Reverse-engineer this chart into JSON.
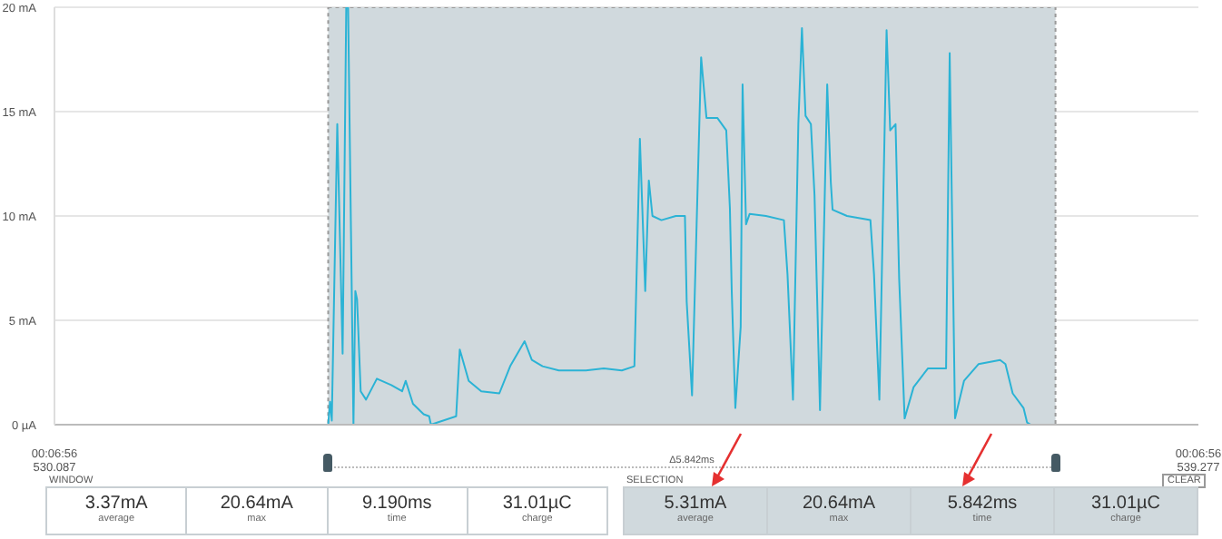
{
  "chart_data": {
    "type": "line",
    "x": [
      530.087,
      532.286,
      532.301,
      532.315,
      532.359,
      532.402,
      532.431,
      532.446,
      532.489,
      532.504,
      532.518,
      532.547,
      532.59,
      532.677,
      532.793,
      532.88,
      532.909,
      532.967,
      533.053,
      533.097,
      533.111,
      533.314,
      533.343,
      533.415,
      533.516,
      533.661,
      533.748,
      533.864,
      533.922,
      534.008,
      534.139,
      534.356,
      534.5,
      534.645,
      534.746,
      534.79,
      534.833,
      534.862,
      534.891,
      534.963,
      535.079,
      535.152,
      535.166,
      535.209,
      535.282,
      535.325,
      535.412,
      535.484,
      535.513,
      535.528,
      535.557,
      535.6,
      535.615,
      535.643,
      535.672,
      535.803,
      535.947,
      535.976,
      536.02,
      536.063,
      536.092,
      536.121,
      536.164,
      536.193,
      536.237,
      536.295,
      536.324,
      536.338,
      536.454,
      536.642,
      536.671,
      536.714,
      536.772,
      536.801,
      536.844,
      536.873,
      536.917,
      536.989,
      537.105,
      537.25,
      537.279,
      537.322,
      537.394,
      537.51,
      537.684,
      537.727,
      537.785,
      537.872,
      537.901,
      537.93,
      539.277
    ],
    "series": [
      {
        "color": "#2bb3d5",
        "values": [
          0,
          0,
          1.1,
          0.2,
          14.4,
          3.4,
          20,
          20,
          0,
          6.4,
          6,
          1.6,
          1.2,
          2.2,
          1.9,
          1.6,
          2.1,
          1,
          0.5,
          0.4,
          0,
          0.4,
          3.6,
          2.1,
          1.6,
          1.5,
          2.8,
          4,
          3.1,
          2.8,
          2.6,
          2.6,
          2.7,
          2.6,
          2.8,
          13.7,
          6.4,
          11.7,
          10,
          9.8,
          10,
          10,
          5.9,
          1.4,
          17.6,
          14.7,
          14.7,
          14.1,
          10.4,
          6.4,
          0.8,
          4.7,
          16.3,
          9.6,
          10.1,
          10,
          9.8,
          7.2,
          1.2,
          14.4,
          19,
          14.8,
          14.4,
          11,
          0.7,
          16.3,
          11.6,
          10.3,
          10,
          9.8,
          7.2,
          1.2,
          18.9,
          14.1,
          14.4,
          7,
          0.3,
          1.8,
          2.7,
          2.7,
          17.8,
          0.3,
          2.1,
          2.9,
          3.1,
          2.9,
          1.5,
          0.8,
          0.1,
          0,
          0
        ]
      }
    ],
    "xlim": [
      530.087,
      539.277
    ],
    "xticks": [
      530.087,
      539.277
    ],
    "ylim": [
      0,
      20
    ],
    "yticks": [
      {
        "value": 0,
        "label": "0 µA"
      },
      {
        "value": 5,
        "label": "5 mA"
      },
      {
        "value": 10,
        "label": "10 mA"
      },
      {
        "value": 15,
        "label": "15 mA"
      },
      {
        "value": 20,
        "label": "20 mA"
      }
    ],
    "grid": "y",
    "bands": [
      {
        "axis": "x",
        "from": 532.286,
        "to": 538.129,
        "label": "Δ5.842ms",
        "color": "#d0d9dd"
      }
    ],
    "annotations": [
      "WINDOW",
      "3.37mA",
      "average",
      "20.64mA",
      "max",
      "9.190ms",
      "time",
      "31.01µC",
      "charge",
      "SELECTION",
      "CLEAR",
      "5.31mA",
      "average",
      "20.64mA",
      "max",
      "5.842ms",
      "time",
      "31.01µC",
      "charge",
      "00:06:56",
      "00:06:56"
    ]
  }
}
